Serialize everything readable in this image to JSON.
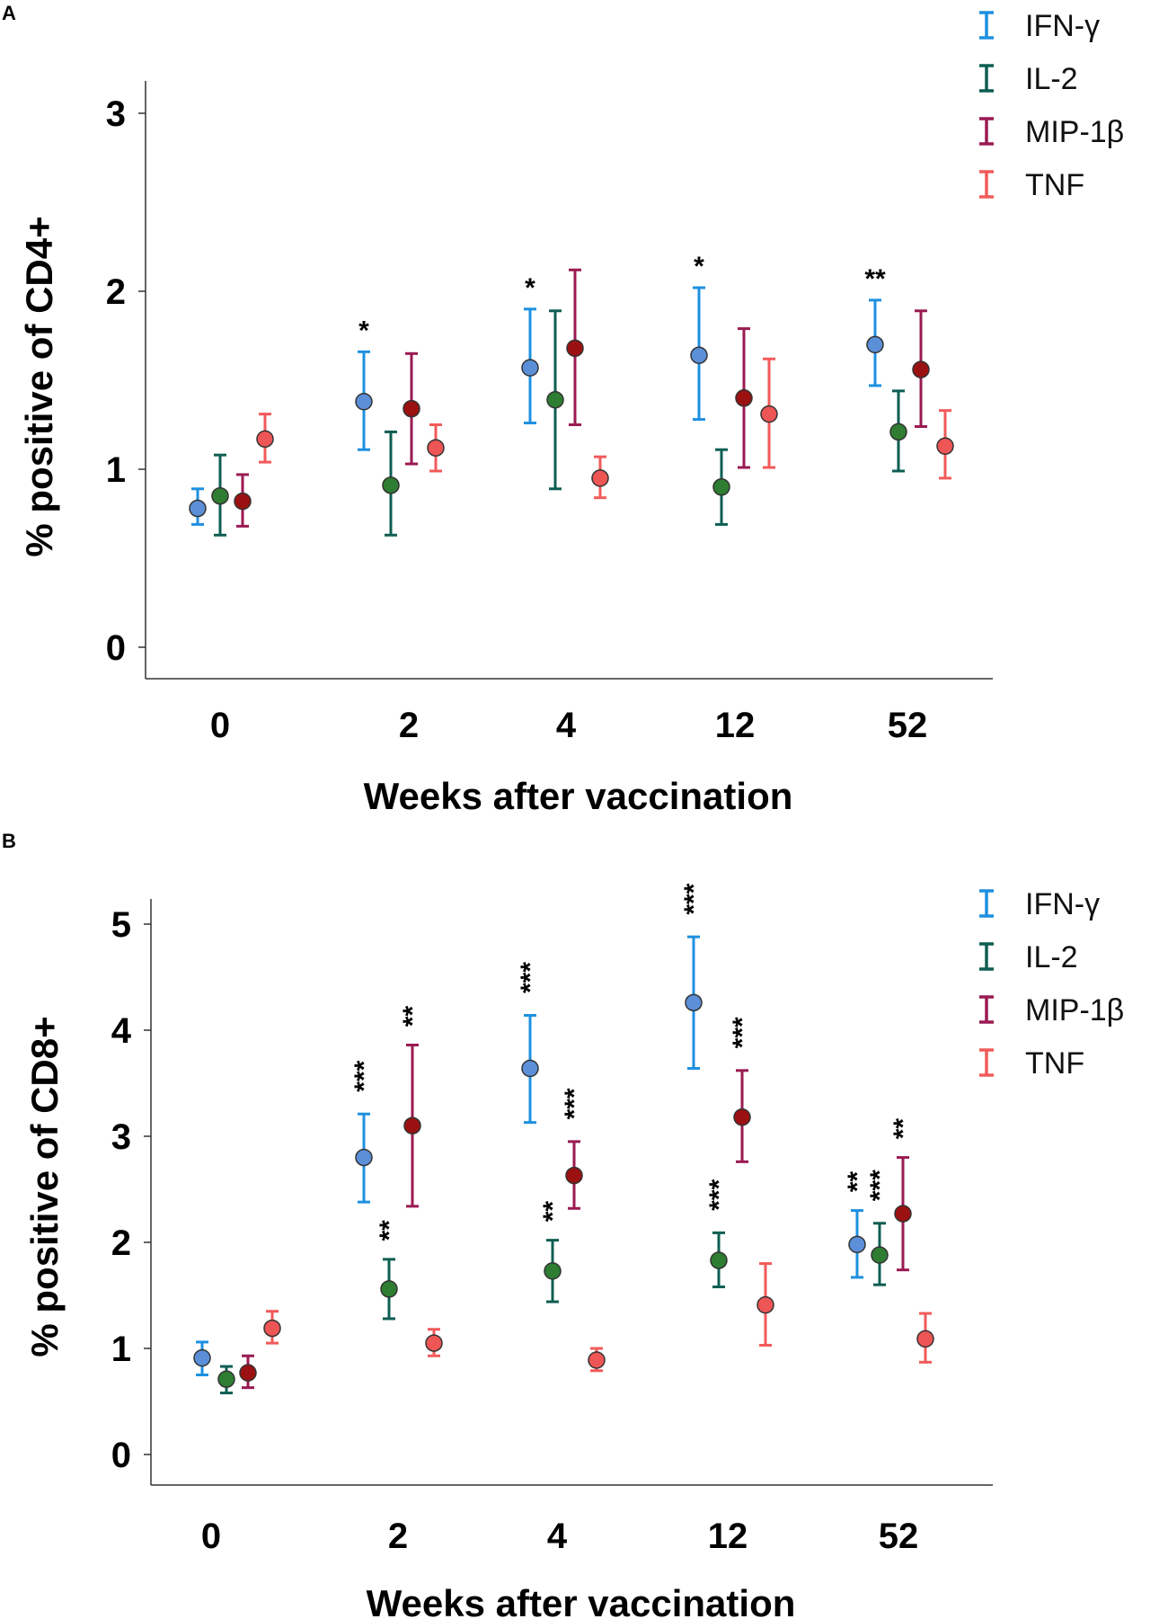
{
  "chart_data": [
    {
      "type": "errorbar",
      "panel": "A",
      "ylabel": "% positive of CD4+",
      "xlabel": "Weeks after vaccination",
      "categories": [
        "0",
        "2",
        "4",
        "12",
        "52"
      ],
      "yticks": [
        0,
        1,
        2,
        3
      ],
      "ylim": [
        -0.15,
        3.15
      ],
      "legend_position": "top-right",
      "series": [
        {
          "name": "IFN-γ",
          "bar_color": "#1e90e0",
          "marker_color": "#5b8fd8",
          "mean": [
            0.78,
            1.38,
            1.57,
            1.64,
            1.7
          ],
          "lower": [
            0.69,
            1.11,
            1.26,
            1.28,
            1.47
          ],
          "upper": [
            0.89,
            1.66,
            1.9,
            2.02,
            1.95
          ],
          "significance": [
            "",
            "*",
            "*",
            "*",
            "**"
          ]
        },
        {
          "name": "IL-2",
          "bar_color": "#0e5e52",
          "marker_color": "#2e7d32",
          "mean": [
            0.85,
            0.91,
            1.39,
            0.9,
            1.21
          ],
          "lower": [
            0.63,
            0.63,
            0.89,
            0.69,
            0.99
          ],
          "upper": [
            1.08,
            1.21,
            1.89,
            1.11,
            1.44
          ],
          "significance": [
            "",
            "",
            "",
            "",
            ""
          ]
        },
        {
          "name": "MIP-1β",
          "bar_color": "#9a1a52",
          "marker_color": "#9b1111",
          "mean": [
            0.82,
            1.34,
            1.68,
            1.4,
            1.56
          ],
          "lower": [
            0.68,
            1.03,
            1.25,
            1.01,
            1.24
          ],
          "upper": [
            0.97,
            1.65,
            2.12,
            1.79,
            1.89
          ],
          "significance": [
            "",
            "",
            "",
            "",
            ""
          ]
        },
        {
          "name": "TNF",
          "bar_color": "#f25a5a",
          "marker_color": "#ee5555",
          "mean": [
            1.17,
            1.12,
            0.95,
            1.31,
            1.13
          ],
          "lower": [
            1.04,
            0.99,
            0.84,
            1.01,
            0.95
          ],
          "upper": [
            1.31,
            1.25,
            1.07,
            1.62,
            1.33
          ],
          "significance": [
            "",
            "",
            "",
            "",
            ""
          ]
        }
      ]
    },
    {
      "type": "errorbar",
      "panel": "B",
      "ylabel": "% positive of CD8+",
      "xlabel": "Weeks after vaccination",
      "categories": [
        "0",
        "2",
        "4",
        "12",
        "52"
      ],
      "yticks": [
        0,
        1,
        2,
        3,
        4,
        5
      ],
      "ylim": [
        -0.3,
        5.3
      ],
      "legend_position": "top-right",
      "series": [
        {
          "name": "IFN-γ",
          "bar_color": "#1e90e0",
          "marker_color": "#5b8fd8",
          "mean": [
            0.91,
            2.8,
            3.64,
            4.26,
            1.98
          ],
          "lower": [
            0.75,
            2.38,
            3.13,
            3.64,
            1.67
          ],
          "upper": [
            1.06,
            3.21,
            4.14,
            4.88,
            2.3
          ],
          "significance": [
            "",
            "***",
            "***",
            "***",
            "**"
          ]
        },
        {
          "name": "IL-2",
          "bar_color": "#0e5e52",
          "marker_color": "#2e7d32",
          "mean": [
            0.71,
            1.56,
            1.73,
            1.83,
            1.88
          ],
          "lower": [
            0.58,
            1.28,
            1.44,
            1.58,
            1.6
          ],
          "upper": [
            0.83,
            1.84,
            2.02,
            2.09,
            2.18
          ],
          "significance": [
            "",
            "**",
            "**",
            "***",
            "***"
          ]
        },
        {
          "name": "MIP-1β",
          "bar_color": "#9a1a52",
          "marker_color": "#9b1111",
          "mean": [
            0.77,
            3.1,
            2.63,
            3.18,
            2.27
          ],
          "lower": [
            0.63,
            2.34,
            2.32,
            2.76,
            1.74
          ],
          "upper": [
            0.93,
            3.86,
            2.95,
            3.62,
            2.8
          ],
          "significance": [
            "",
            "**",
            "***",
            "***",
            "**"
          ]
        },
        {
          "name": "TNF",
          "bar_color": "#f25a5a",
          "marker_color": "#ee5555",
          "mean": [
            1.19,
            1.05,
            0.89,
            1.41,
            1.09
          ],
          "lower": [
            1.05,
            0.93,
            0.79,
            1.03,
            0.87
          ],
          "upper": [
            1.35,
            1.18,
            1.0,
            1.8,
            1.33
          ],
          "significance": [
            "",
            "",
            "",
            "",
            ""
          ]
        }
      ]
    }
  ]
}
